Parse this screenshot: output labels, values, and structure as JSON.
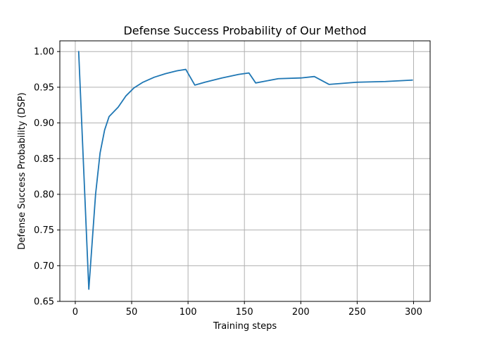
{
  "chart_data": {
    "type": "line",
    "title": "Defense Success Probability of Our Method",
    "xlabel": "Training steps",
    "ylabel": "Defense Success Probability (DSP)",
    "xlim": [
      -13.7,
      314.7
    ],
    "ylim": [
      0.65,
      1.015
    ],
    "x_ticks": [
      0,
      50,
      100,
      150,
      200,
      250,
      300
    ],
    "y_ticks": [
      0.65,
      0.7,
      0.75,
      0.8,
      0.85,
      0.9,
      0.95,
      1.0
    ],
    "grid": true,
    "legend": "none",
    "line_color": "#1f77b4",
    "series": [
      {
        "x": [
          3,
          12,
          18,
          22,
          26,
          30,
          38,
          45,
          52,
          60,
          70,
          80,
          90,
          98,
          106,
          115,
          130,
          145,
          154,
          160,
          180,
          200,
          212,
          225,
          250,
          275,
          299
        ],
        "y": [
          1.0,
          0.667,
          0.8,
          0.858,
          0.89,
          0.909,
          0.922,
          0.938,
          0.949,
          0.957,
          0.964,
          0.969,
          0.973,
          0.975,
          0.953,
          0.957,
          0.963,
          0.968,
          0.97,
          0.956,
          0.962,
          0.963,
          0.965,
          0.954,
          0.957,
          0.958,
          0.96
        ]
      }
    ]
  }
}
